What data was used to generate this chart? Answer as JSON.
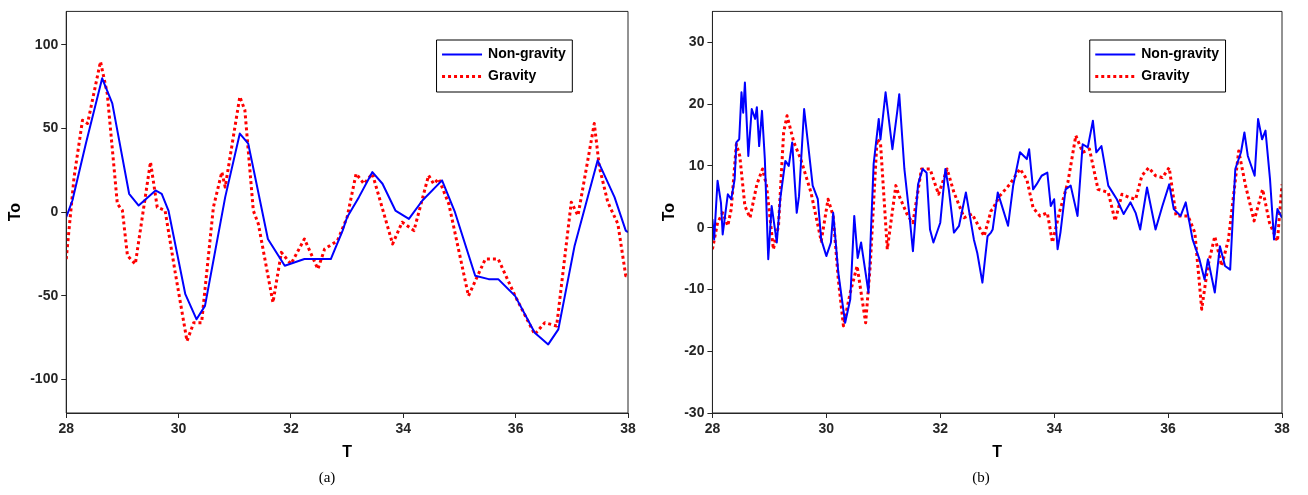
{
  "chart_data": [
    {
      "type": "line",
      "xlabel": "T",
      "ylabel": "To",
      "xlim": [
        28,
        38
      ],
      "ylim": [
        -120,
        120
      ],
      "xticks": [
        28,
        30,
        32,
        34,
        36,
        38
      ],
      "yticks": [
        -100,
        -50,
        0,
        50,
        100
      ],
      "grid": false,
      "legend": "top right",
      "marker": "none",
      "annotations": [
        "(a)"
      ],
      "series": [
        {
          "name": "Non-gravity",
          "color": "#0000ff",
          "line_style": "solid",
          "x": [
            28.0,
            28.11,
            28.35,
            28.64,
            28.82,
            29.12,
            29.29,
            29.59,
            29.7,
            29.82,
            30.12,
            30.32,
            30.47,
            30.83,
            31.09,
            31.24,
            31.59,
            31.89,
            32.24,
            32.71,
            32.92,
            33.0,
            33.21,
            33.45,
            33.63,
            33.86,
            34.1,
            34.34,
            34.69,
            34.92,
            35.28,
            35.52,
            35.69,
            35.99,
            36.34,
            36.58,
            36.76,
            37.05,
            37.46,
            37.76,
            37.96,
            38.0
          ],
          "values": [
            -3,
            7,
            41,
            80,
            65,
            11,
            4,
            13,
            11,
            1,
            -49,
            -64,
            -56,
            9,
            47,
            41,
            -16,
            -32,
            -28,
            -28,
            -11,
            -3,
            9,
            24,
            17,
            1,
            -4,
            7,
            19,
            0,
            -38,
            -40,
            -40,
            -50,
            -72,
            -79,
            -70,
            -20,
            31,
            9,
            -11,
            -12
          ]
        },
        {
          "name": "Gravity",
          "color": "#ff0000",
          "line_style": "dotted",
          "x": [
            28.0,
            28.14,
            28.29,
            28.38,
            28.61,
            28.73,
            28.91,
            29.0,
            29.09,
            29.23,
            29.5,
            29.62,
            29.76,
            29.94,
            30.15,
            30.27,
            30.41,
            30.62,
            30.77,
            30.83,
            31.09,
            31.18,
            31.33,
            31.42,
            31.68,
            31.83,
            32.0,
            32.24,
            32.48,
            32.6,
            32.83,
            33.0,
            33.16,
            33.3,
            33.45,
            33.81,
            33.98,
            34.19,
            34.45,
            34.54,
            34.63,
            34.81,
            35.16,
            35.46,
            35.69,
            35.99,
            36.34,
            36.52,
            36.73,
            36.99,
            37.11,
            37.4,
            37.49,
            37.64,
            37.82,
            37.96,
            38.0
          ],
          "values": [
            -28,
            21,
            55,
            53,
            90,
            71,
            5,
            1,
            -26,
            -31,
            30,
            3,
            1,
            -36,
            -77,
            -66,
            -66,
            3,
            24,
            15,
            69,
            61,
            1,
            -7,
            -54,
            -24,
            -31,
            -16,
            -34,
            -22,
            -17,
            -3,
            23,
            17,
            23,
            -19,
            -6,
            -11,
            22,
            17,
            20,
            5,
            -50,
            -28,
            -28,
            -50,
            -73,
            -66,
            -68,
            6,
            -2,
            53,
            27,
            6,
            -7,
            -38,
            -38
          ]
        }
      ]
    },
    {
      "type": "line",
      "xlabel": "T",
      "ylabel": "To",
      "xlim": [
        28,
        38
      ],
      "ylim": [
        -30,
        35
      ],
      "xticks": [
        28,
        30,
        32,
        34,
        36,
        38
      ],
      "yticks": [
        -30,
        -20,
        -10,
        0,
        10,
        20,
        30
      ],
      "grid": false,
      "legend": "top right",
      "marker": "none",
      "annotations": [
        "(b)"
      ],
      "series": [
        {
          "name": "Non-gravity",
          "color": "#0000ff",
          "line_style": "solid",
          "x": [
            28.0,
            28.03,
            28.09,
            28.15,
            28.18,
            28.27,
            28.33,
            28.39,
            28.42,
            28.47,
            28.51,
            28.54,
            28.57,
            28.63,
            28.66,
            28.69,
            28.75,
            28.78,
            28.82,
            28.87,
            28.92,
            28.98,
            29.04,
            29.13,
            29.19,
            29.28,
            29.34,
            29.4,
            29.48,
            29.52,
            29.61,
            29.67,
            29.76,
            29.85,
            29.91,
            30.0,
            30.08,
            30.12,
            30.21,
            30.33,
            30.42,
            30.49,
            30.55,
            30.61,
            30.74,
            30.83,
            30.92,
            30.95,
            31.04,
            31.16,
            31.25,
            31.28,
            31.37,
            31.46,
            31.52,
            31.61,
            31.69,
            31.76,
            31.82,
            31.88,
            32.0,
            32.09,
            32.15,
            32.24,
            32.33,
            32.45,
            32.59,
            32.65,
            32.74,
            32.83,
            32.89,
            32.92,
            33.01,
            33.1,
            33.19,
            33.28,
            33.4,
            33.52,
            33.56,
            33.63,
            33.69,
            33.78,
            33.88,
            33.94,
            34.0,
            34.06,
            34.11,
            34.2,
            34.29,
            34.41,
            34.5,
            34.59,
            34.68,
            34.74,
            34.83,
            34.95,
            35.1,
            35.22,
            35.34,
            35.43,
            35.51,
            35.63,
            35.72,
            35.78,
            35.9,
            36.02,
            36.1,
            36.22,
            36.31,
            36.43,
            36.55,
            36.64,
            36.7,
            36.82,
            36.91,
            37.0,
            37.09,
            37.18,
            37.28,
            37.34,
            37.4,
            37.52,
            37.58,
            37.65,
            37.71,
            37.79,
            37.86,
            37.92,
            38.0
          ],
          "values": [
            1.4,
            -1.9,
            7.6,
            4,
            -1.1,
            5.4,
            4.6,
            7.8,
            13.8,
            14.3,
            21.9,
            18.6,
            23.5,
            11.6,
            15.4,
            19.2,
            17.6,
            19.5,
            13.2,
            18.9,
            11.1,
            -5.1,
            3.5,
            -2.4,
            4.6,
            10.8,
            10,
            13.8,
            2.4,
            5.1,
            19.2,
            14.3,
            6.8,
            4.6,
            -1.9,
            -4.6,
            -2.4,
            2.4,
            -7.3,
            -15.4,
            -11.6,
            1.9,
            -4.9,
            -2.4,
            -10.5,
            10.3,
            17.6,
            14.3,
            21.9,
            12.7,
            19.2,
            21.6,
            9.5,
            1.9,
            -3.8,
            7,
            9.5,
            8.9,
            -0.3,
            -2.4,
            0.8,
            9.5,
            6.2,
            -0.8,
            0.3,
            5.7,
            -1.9,
            -4.1,
            -8.9,
            -1.4,
            -0.8,
            -0.3,
            5.7,
            3,
            0.3,
            6.8,
            12.2,
            11.1,
            12.7,
            6.2,
            7,
            8.4,
            8.9,
            3.5,
            4.6,
            -3.5,
            -0.8,
            6.2,
            6.8,
            1.9,
            13.5,
            13,
            17.3,
            12.2,
            13.2,
            6.8,
            4.6,
            2.2,
            4.1,
            2.4,
            -0.3,
            6.5,
            2.4,
            -0.3,
            3.5,
            7,
            3,
            1.9,
            4.1,
            -1.9,
            -5.1,
            -8.4,
            -5.1,
            -10.5,
            -3,
            -6.2,
            -6.8,
            9.5,
            12.2,
            15.4,
            11.6,
            8.4,
            17.6,
            14.3,
            15.7,
            7.8,
            -1.9,
            3,
            1.6
          ]
        },
        {
          "name": "Gravity",
          "color": "#ff0000",
          "line_style": "dotted",
          "x": [
            28.0,
            28.09,
            28.18,
            28.27,
            28.33,
            28.42,
            28.48,
            28.57,
            28.66,
            28.78,
            28.88,
            28.95,
            29.07,
            29.16,
            29.25,
            29.31,
            29.43,
            29.55,
            29.73,
            29.91,
            30.03,
            30.12,
            30.21,
            30.3,
            30.42,
            30.54,
            30.69,
            30.77,
            30.89,
            30.95,
            31.07,
            31.22,
            31.28,
            31.43,
            31.52,
            31.67,
            31.82,
            31.97,
            32.12,
            32.24,
            32.42,
            32.56,
            32.77,
            32.89,
            32.92,
            33.04,
            33.22,
            33.4,
            33.52,
            33.63,
            33.75,
            33.88,
            33.97,
            34.09,
            34.24,
            34.38,
            34.5,
            34.62,
            34.77,
            34.95,
            35.07,
            35.19,
            35.31,
            35.43,
            35.54,
            35.66,
            35.78,
            35.9,
            36.02,
            36.14,
            36.35,
            36.47,
            36.59,
            36.7,
            36.82,
            36.94,
            37.06,
            37.24,
            37.36,
            37.51,
            37.66,
            37.78,
            37.92,
            38.0
          ],
          "values": [
            -3.5,
            0.8,
            2.4,
            0.3,
            3,
            13.5,
            11.6,
            3.5,
            1.6,
            7,
            9.5,
            6.8,
            -3.5,
            0.3,
            15.4,
            18.1,
            13.8,
            11.1,
            5.7,
            -2.2,
            4.6,
            1.9,
            -8.4,
            -15.9,
            -10.5,
            -6.2,
            -15.4,
            -6.2,
            14.3,
            13.8,
            -3.5,
            6.8,
            5.1,
            1.9,
            0.8,
            9.5,
            9.5,
            5.4,
            9.5,
            5.7,
            1.6,
            2.2,
            -1.4,
            2.7,
            3,
            5.1,
            7,
            9.5,
            7.8,
            3.2,
            1.9,
            2.4,
            -2.4,
            2.4,
            7.3,
            14.9,
            12.2,
            12.7,
            6.2,
            5.7,
            1.1,
            5.4,
            4.9,
            4.6,
            8.4,
            9.7,
            8.4,
            8.1,
            9.7,
            1.9,
            1.9,
            -0.8,
            -13.2,
            -6.2,
            -1.4,
            -6.2,
            -1.9,
            12.4,
            6.8,
            1.1,
            6.2,
            0.8,
            -2.2,
            7
          ]
        }
      ]
    }
  ]
}
